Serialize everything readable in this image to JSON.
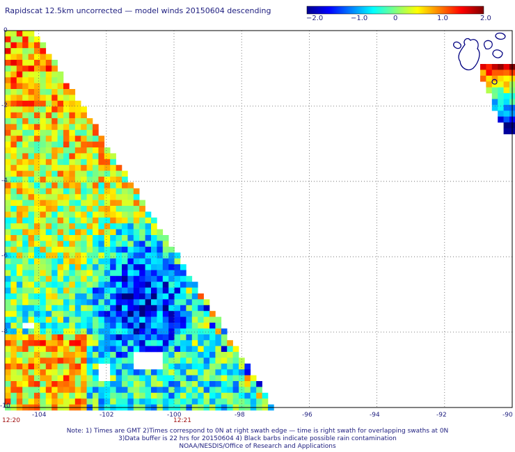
{
  "title": "Rapidscat 12.5km uncorrected — model winds 20150604 descending",
  "colorbar": {
    "labels": [
      "−2.0",
      "−1.0",
      "0",
      "1.0",
      "2.0"
    ],
    "range": [
      -2.0,
      2.0
    ],
    "colormap": "jet"
  },
  "axes": {
    "lon_ticks": [
      "-104",
      "-102",
      "-100",
      "-98",
      "-96",
      "-94",
      "-92",
      "-90"
    ],
    "lat_ticks": [
      "0",
      "-2",
      "-4",
      "-6",
      "-8",
      "-10"
    ],
    "lon_range": [
      -105,
      -90
    ],
    "lat_range": [
      -10,
      0
    ],
    "grid": "dotted"
  },
  "times": [
    "12:20",
    "12:21"
  ],
  "notes": [
    "Note: 1) Times are GMT 2)Times correspond to 0N at right swath edge — time is right swath for overlapping swaths at 0N",
    "3)Data buffer is 22 hrs for 20150604 4) Black barbs indicate possible rain contamination",
    "NOAA/NESDIS/Office of Research and Applications"
  ],
  "colors": {
    "text": "#202080",
    "time": "#a01010",
    "coast": "#000080",
    "grid": "#606060"
  }
}
